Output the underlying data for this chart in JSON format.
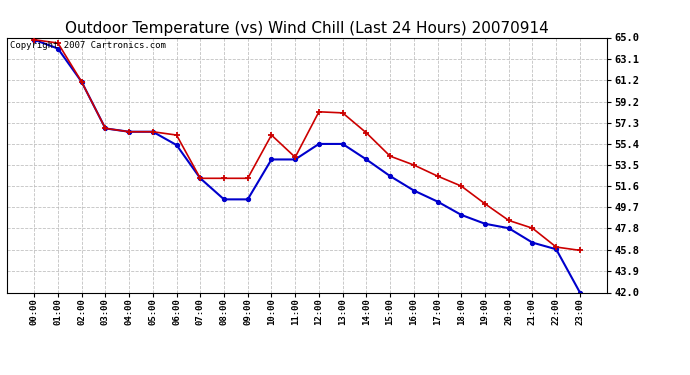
{
  "title": "Outdoor Temperature (vs) Wind Chill (Last 24 Hours) 20070914",
  "copyright_text": "Copyright 2007 Cartronics.com",
  "x_labels": [
    "00:00",
    "01:00",
    "02:00",
    "03:00",
    "04:00",
    "05:00",
    "06:00",
    "07:00",
    "08:00",
    "09:00",
    "10:00",
    "11:00",
    "12:00",
    "13:00",
    "14:00",
    "15:00",
    "16:00",
    "17:00",
    "18:00",
    "19:00",
    "20:00",
    "21:00",
    "22:00",
    "23:00"
  ],
  "temp_data": [
    64.8,
    64.5,
    61.0,
    56.8,
    56.5,
    56.5,
    56.2,
    52.3,
    52.3,
    52.3,
    56.2,
    54.2,
    58.3,
    58.2,
    56.4,
    54.3,
    53.5,
    52.5,
    51.6,
    50.0,
    48.5,
    47.8,
    46.1,
    45.8
  ],
  "windchill_data": [
    64.8,
    64.0,
    61.0,
    56.8,
    56.5,
    56.5,
    55.3,
    52.3,
    50.4,
    50.4,
    54.0,
    54.0,
    55.4,
    55.4,
    54.0,
    52.5,
    51.2,
    50.2,
    49.0,
    48.2,
    47.8,
    46.5,
    45.9,
    42.0
  ],
  "temp_color": "#cc0000",
  "windchill_color": "#0000cc",
  "background_color": "#ffffff",
  "grid_color": "#bbbbbb",
  "ylim_min": 42.0,
  "ylim_max": 65.0,
  "yticks": [
    42.0,
    43.9,
    45.8,
    47.8,
    49.7,
    51.6,
    53.5,
    55.4,
    57.3,
    59.2,
    61.2,
    63.1,
    65.0
  ],
  "title_fontsize": 11,
  "copyright_fontsize": 6.5,
  "fig_width": 6.9,
  "fig_height": 3.75
}
